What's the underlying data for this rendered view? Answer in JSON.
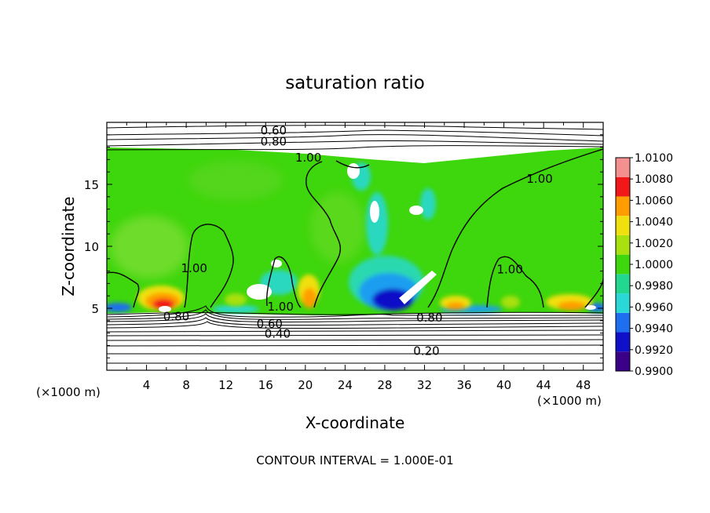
{
  "chart_data": {
    "type": "heatmap",
    "title": "saturation ratio",
    "xlabel": "X-coordinate",
    "ylabel": "Z-coordinate",
    "x_unit_left": "(×1000 m)",
    "x_unit_right": "(×1000 m)",
    "footer": "CONTOUR INTERVAL = 1.000E-01",
    "xlim": [
      0,
      50
    ],
    "ylim": [
      0,
      20
    ],
    "x_ticks": [
      4,
      8,
      12,
      16,
      20,
      24,
      28,
      32,
      36,
      40,
      44,
      48
    ],
    "x_tick_labels": [
      "4",
      "8",
      "12",
      "16",
      "20",
      "24",
      "28",
      "32",
      "36",
      "40",
      "44",
      "48"
    ],
    "y_ticks": [
      5,
      10,
      15
    ],
    "y_tick_labels": [
      "5",
      "10",
      "15"
    ],
    "colorbar": {
      "levels": [
        0.99,
        0.992,
        0.994,
        0.996,
        0.998,
        1.0,
        1.002,
        1.004,
        1.006,
        1.008,
        1.01
      ],
      "labels": [
        "0.9900",
        "0.9920",
        "0.9940",
        "0.9960",
        "0.9980",
        "1.0000",
        "1.0020",
        "1.0040",
        "1.0060",
        "1.0080",
        "1.0100"
      ],
      "colors": [
        "#3a0088",
        "#1010c8",
        "#1e6ef0",
        "#2ad8d8",
        "#22d890",
        "#3ed60c",
        "#a8e010",
        "#f0e010",
        "#ff9c00",
        "#f01818",
        "#f49090"
      ]
    },
    "contour_labels": [
      {
        "text": "0.60",
        "x": 16.8,
        "z": 19.4
      },
      {
        "text": "0.80",
        "x": 16.8,
        "z": 18.5
      },
      {
        "text": "1.00",
        "x": 20.3,
        "z": 17.2
      },
      {
        "text": "1.00",
        "x": 43.6,
        "z": 15.5
      },
      {
        "text": "1.00",
        "x": 8.8,
        "z": 8.3
      },
      {
        "text": "1.00",
        "x": 40.6,
        "z": 8.2
      },
      {
        "text": "1.00",
        "x": 17.5,
        "z": 5.2
      },
      {
        "text": "0.80",
        "x": 7.0,
        "z": 4.4
      },
      {
        "text": "0.80",
        "x": 32.5,
        "z": 4.3
      },
      {
        "text": "0.60",
        "x": 16.4,
        "z": 3.8
      },
      {
        "text": "0.40",
        "x": 17.2,
        "z": 3.0
      },
      {
        "text": "0.20",
        "x": 32.2,
        "z": 1.6
      }
    ]
  }
}
